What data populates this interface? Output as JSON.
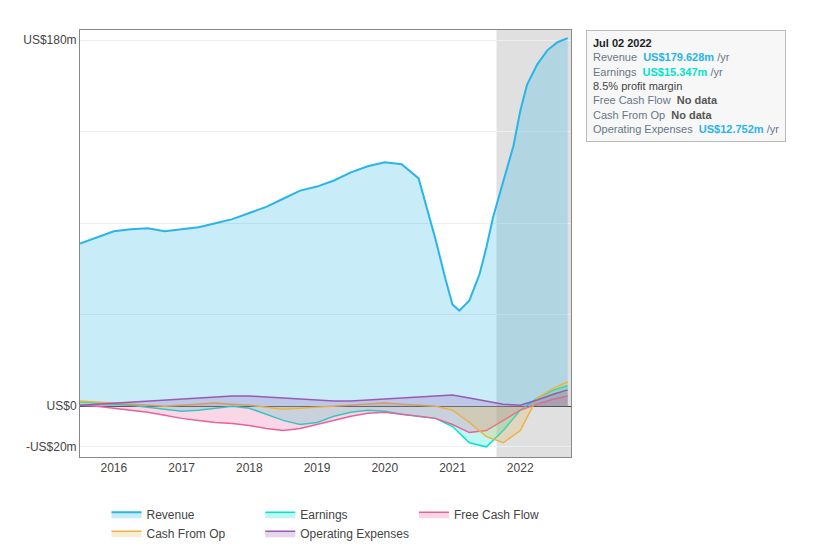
{
  "chart_data": {
    "type": "area",
    "xlim": [
      2015.5,
      2022.75
    ],
    "ylim": [
      -25000000,
      185000000
    ],
    "xticks": [
      2016,
      2017,
      2018,
      2019,
      2020,
      2021,
      2022
    ],
    "yticks": [
      {
        "value": -20000000,
        "label": "-US$20m"
      },
      {
        "value": 0,
        "label": "US$0"
      },
      {
        "value": 45000000,
        "label": null
      },
      {
        "value": 90000000,
        "label": null
      },
      {
        "value": 135000000,
        "label": null
      },
      {
        "value": 180000000,
        "label": "US$180m"
      }
    ],
    "grid": "y",
    "legend": "bottom",
    "highlight_x": [
      2021.65,
      2022.75
    ],
    "series": [
      {
        "name": "Revenue",
        "color": "#29b5e8",
        "x": [
          2015.5,
          2015.75,
          2016.0,
          2016.25,
          2016.5,
          2016.75,
          2017.0,
          2017.25,
          2017.5,
          2017.75,
          2018.0,
          2018.25,
          2018.5,
          2018.75,
          2019.0,
          2019.25,
          2019.5,
          2019.75,
          2020.0,
          2020.25,
          2020.5,
          2020.6,
          2020.75,
          2020.9,
          2021.0,
          2021.1,
          2021.25,
          2021.4,
          2021.5,
          2021.6,
          2021.75,
          2021.9,
          2022.0,
          2022.1,
          2022.25,
          2022.4,
          2022.55,
          2022.7
        ],
        "values": [
          80000000,
          83000000,
          86000000,
          87000000,
          87500000,
          86000000,
          87000000,
          88000000,
          90000000,
          92000000,
          95000000,
          98000000,
          102000000,
          106000000,
          108000000,
          111000000,
          115000000,
          118000000,
          120000000,
          119000000,
          112000000,
          100000000,
          82000000,
          62000000,
          50000000,
          47000000,
          52000000,
          65000000,
          78000000,
          93000000,
          110000000,
          128000000,
          145000000,
          158000000,
          168000000,
          175000000,
          179000000,
          181000000
        ]
      },
      {
        "name": "Earnings",
        "color": "#00e5cc",
        "x": [
          2015.5,
          2015.75,
          2016.0,
          2016.25,
          2016.5,
          2016.75,
          2017.0,
          2017.25,
          2017.5,
          2017.75,
          2018.0,
          2018.25,
          2018.5,
          2018.75,
          2019.0,
          2019.25,
          2019.5,
          2019.75,
          2020.0,
          2020.25,
          2020.5,
          2020.75,
          2021.0,
          2021.25,
          2021.5,
          2021.75,
          2022.0,
          2022.25,
          2022.5,
          2022.7
        ],
        "values": [
          2000000,
          1500000,
          1000000,
          500000,
          -500000,
          -1500000,
          -2500000,
          -2000000,
          -1000000,
          0,
          -1000000,
          -4000000,
          -7000000,
          -9000000,
          -8000000,
          -5000000,
          -3000000,
          -2000000,
          -2500000,
          -4000000,
          -5000000,
          -6000000,
          -10000000,
          -18000000,
          -20000000,
          -12000000,
          -2000000,
          4000000,
          8000000,
          10000000
        ]
      },
      {
        "name": "Free Cash Flow",
        "color": "#e8619d",
        "x": [
          2015.5,
          2015.75,
          2016.0,
          2016.25,
          2016.5,
          2016.75,
          2017.0,
          2017.25,
          2017.5,
          2017.75,
          2018.0,
          2018.25,
          2018.5,
          2018.75,
          2019.0,
          2019.25,
          2019.5,
          2019.75,
          2020.0,
          2020.25,
          2020.5,
          2020.75,
          2021.0,
          2021.25,
          2021.5,
          2021.75,
          2022.0,
          2022.25,
          2022.5,
          2022.7
        ],
        "values": [
          500000,
          0,
          -1000000,
          -2000000,
          -3000000,
          -4500000,
          -6000000,
          -7000000,
          -8000000,
          -8500000,
          -9500000,
          -11000000,
          -12000000,
          -11000000,
          -9000000,
          -7000000,
          -5000000,
          -3500000,
          -3000000,
          -4000000,
          -5000000,
          -6000000,
          -9000000,
          -13000000,
          -12000000,
          -7000000,
          -2000000,
          1000000,
          3500000,
          5000000
        ]
      },
      {
        "name": "Cash From Op",
        "color": "#e8b44a",
        "x": [
          2015.5,
          2015.75,
          2016.0,
          2016.25,
          2016.5,
          2016.75,
          2017.0,
          2017.25,
          2017.5,
          2017.75,
          2018.0,
          2018.25,
          2018.5,
          2018.75,
          2019.0,
          2019.25,
          2019.5,
          2019.75,
          2020.0,
          2020.25,
          2020.5,
          2020.75,
          2021.0,
          2021.25,
          2021.5,
          2021.75,
          2022.0,
          2022.25,
          2022.5,
          2022.7
        ],
        "values": [
          2500000,
          2000000,
          1500000,
          1000000,
          500000,
          0,
          500000,
          1000000,
          1500000,
          1000000,
          500000,
          -500000,
          -1500000,
          -1000000,
          -500000,
          0,
          500000,
          1000000,
          1500000,
          1000000,
          500000,
          0,
          -2000000,
          -8000000,
          -15000000,
          -18000000,
          -12000000,
          4000000,
          9000000,
          12000000
        ]
      },
      {
        "name": "Operating Expenses",
        "color": "#9b59b6",
        "x": [
          2015.5,
          2015.75,
          2016.0,
          2016.25,
          2016.5,
          2016.75,
          2017.0,
          2017.25,
          2017.5,
          2017.75,
          2018.0,
          2018.25,
          2018.5,
          2018.75,
          2019.0,
          2019.25,
          2019.5,
          2019.75,
          2020.0,
          2020.25,
          2020.5,
          2020.75,
          2021.0,
          2021.25,
          2021.5,
          2021.75,
          2022.0,
          2022.25,
          2022.5,
          2022.7
        ],
        "values": [
          500000,
          1000000,
          1500000,
          2000000,
          2500000,
          3000000,
          3500000,
          4000000,
          4500000,
          5000000,
          5000000,
          4500000,
          4000000,
          3500000,
          3000000,
          2500000,
          2500000,
          3000000,
          3500000,
          4000000,
          4500000,
          5000000,
          5500000,
          4000000,
          2500000,
          1000000,
          500000,
          3000000,
          6000000,
          8000000
        ]
      }
    ],
    "tooltip": {
      "date": "Jul 02 2022",
      "rows": [
        {
          "label": "Revenue",
          "value": "US$179.628m",
          "unit": "/yr",
          "color": "#29b5e8"
        },
        {
          "label": "Earnings",
          "value": "US$15.347m",
          "unit": "/yr",
          "color": "#00e5cc",
          "note": "8.5% profit margin"
        },
        {
          "label": "Free Cash Flow",
          "value": "No data",
          "color": "#555555"
        },
        {
          "label": "Cash From Op",
          "value": "No data",
          "color": "#555555"
        },
        {
          "label": "Operating Expenses",
          "value": "US$12.752m",
          "unit": "/yr",
          "color": "#29b5e8"
        }
      ]
    }
  }
}
